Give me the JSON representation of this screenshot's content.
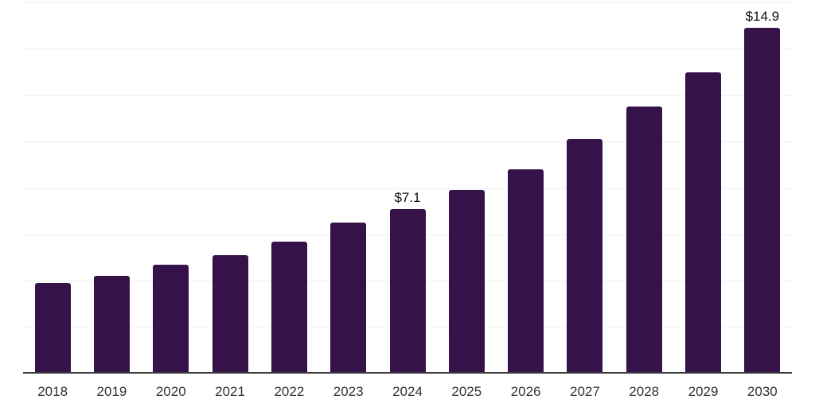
{
  "chart_data": {
    "type": "bar",
    "title": "",
    "xlabel": "",
    "ylabel": "",
    "categories": [
      "2018",
      "2019",
      "2020",
      "2021",
      "2022",
      "2023",
      "2024",
      "2025",
      "2026",
      "2027",
      "2028",
      "2029",
      "2030"
    ],
    "values": [
      3.9,
      4.2,
      4.7,
      5.1,
      5.7,
      6.5,
      7.1,
      7.9,
      8.8,
      10.1,
      11.5,
      13.0,
      14.9
    ],
    "data_labels": [
      {
        "category": "2024",
        "label": "$7.1"
      },
      {
        "category": "2030",
        "label": "$14.9"
      }
    ],
    "ylim": [
      0,
      16
    ],
    "grid_step": 2,
    "grid": true,
    "legend": false,
    "y_axis_labels_visible": false,
    "colors": {
      "bar": "#36124a",
      "gridline": "#f0f0f1",
      "axis_line": "#3b3b3b",
      "tick_label": "#333333",
      "data_label": "#111111",
      "background": "#ffffff"
    }
  }
}
